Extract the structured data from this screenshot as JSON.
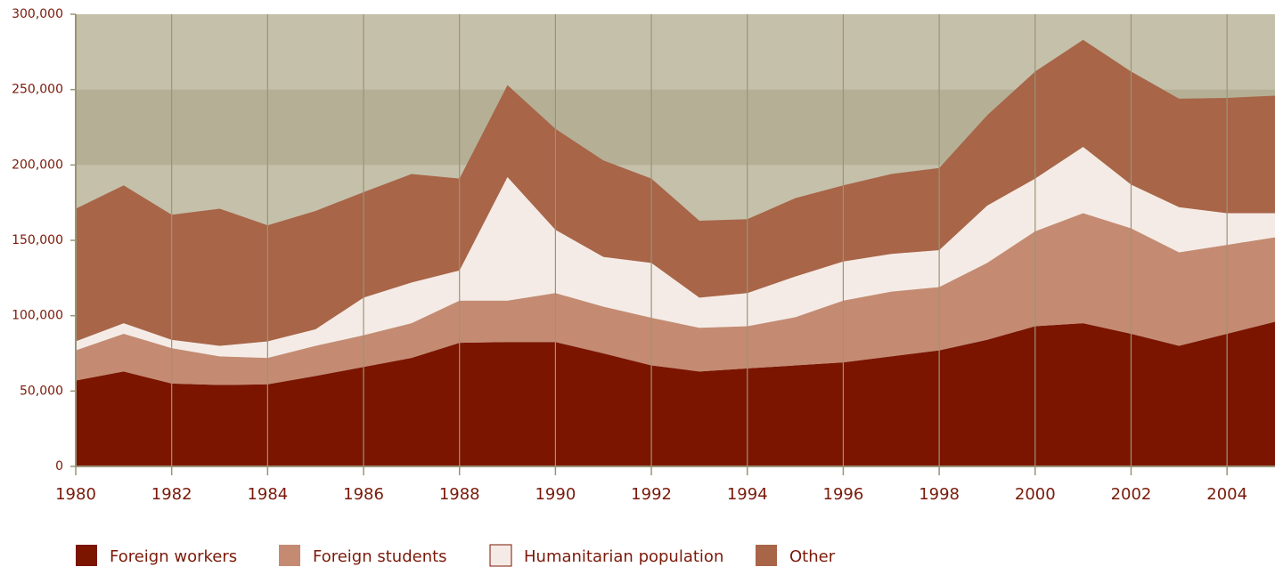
{
  "chart_data": {
    "type": "stacked_area",
    "x": [
      1980,
      1981,
      1982,
      1983,
      1984,
      1985,
      1986,
      1987,
      1988,
      1989,
      1990,
      1991,
      1992,
      1993,
      1994,
      1995,
      1996,
      1997,
      1998,
      1999,
      2000,
      2001,
      2002,
      2003,
      2004,
      2005
    ],
    "series": [
      {
        "name": "Foreign workers",
        "color": "#7b1500",
        "values": [
          57000,
          63000,
          55000,
          54000,
          54500,
          60000,
          66000,
          72000,
          82000,
          82500,
          82500,
          75000,
          67000,
          63000,
          65000,
          67000,
          69000,
          73000,
          77000,
          84000,
          93000,
          95000,
          88000,
          80000,
          88000,
          96000
        ]
      },
      {
        "name": "Foreign students",
        "color": "#c48b72",
        "values": [
          20000,
          25000,
          23500,
          19000,
          17500,
          20000,
          21000,
          23000,
          28000,
          27500,
          32500,
          31000,
          31600,
          29000,
          28000,
          32000,
          41000,
          43000,
          42000,
          51000,
          63000,
          73000,
          70000,
          62000,
          59000,
          56000
        ]
      },
      {
        "name": "Humanitarian population",
        "color": "#f5ebe6",
        "values": [
          6000,
          7000,
          5500,
          7000,
          11000,
          11000,
          25000,
          27000,
          20000,
          82000,
          42000,
          33000,
          36400,
          20000,
          22000,
          27000,
          26000,
          25000,
          24500,
          38000,
          35000,
          44000,
          29000,
          30000,
          21000,
          16000
        ]
      },
      {
        "name": "Other",
        "color": "#a86548",
        "values": [
          88000,
          91500,
          83000,
          91000,
          77000,
          78500,
          70000,
          72000,
          61000,
          61000,
          67000,
          64000,
          56000,
          51000,
          49000,
          52000,
          50500,
          53000,
          54500,
          60000,
          71000,
          71000,
          75000,
          72000,
          76500,
          78000
        ]
      }
    ],
    "xlim": [
      1980,
      2005
    ],
    "xticks": [
      1980,
      1982,
      1984,
      1986,
      1988,
      1990,
      1992,
      1994,
      1996,
      1998,
      2000,
      2002,
      2004
    ],
    "ylim": [
      0,
      300000
    ],
    "yticks": [
      0,
      {
        "value": 50000,
        "label": "50,000"
      },
      {
        "value": 100000,
        "label": "100,000"
      },
      {
        "value": 150000,
        "label": "150,000"
      },
      {
        "value": 200000,
        "label": "200,000"
      },
      {
        "value": 250000,
        "label": "250,000"
      },
      {
        "value": 300000,
        "label": "300,000"
      }
    ],
    "shaded_band": [
      200000,
      250000
    ],
    "grid": true,
    "legend": "bottom"
  }
}
